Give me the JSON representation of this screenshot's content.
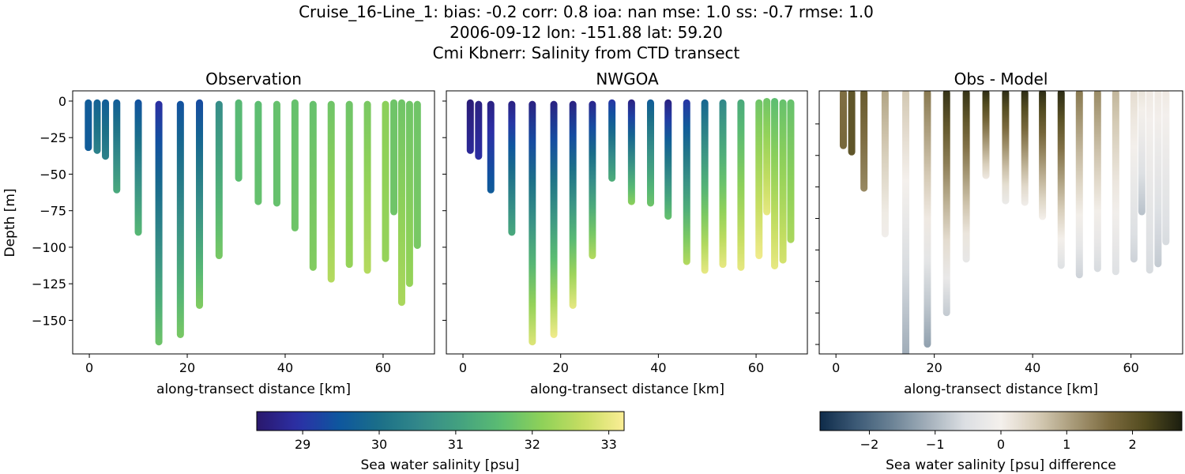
{
  "chart_data": {
    "type": "scatter",
    "title_lines": [
      "Cruise_16-Line_1: bias: -0.2  corr: 0.8  ioa: nan  mse: 1.0  ss: -0.7  rmse: 1.0",
      "2006-09-12 lon: -151.88 lat: 59.20",
      "Cmi Kbnerr: Salinity from CTD transect"
    ],
    "panels": [
      {
        "title": "Observation",
        "xlabel": "along-transect distance [km]",
        "ylabel": "Depth [m]",
        "xlim": [
          -3.4,
          70.5
        ],
        "ylim": [
          -173,
          7
        ],
        "xticks": [
          0,
          20,
          40,
          60
        ],
        "yticks": [
          0,
          -25,
          -50,
          -75,
          -100,
          -125,
          -150
        ],
        "ytick_labels": true,
        "colormap": "haline",
        "vmin": 28.4,
        "vmax": 33.2,
        "profiles": [
          {
            "x": -0.2,
            "top": -1,
            "bottom": -32,
            "s_top": 29.6,
            "s_bottom": 29.6
          },
          {
            "x": 1.6,
            "top": -1,
            "bottom": -34,
            "s_top": 29.7,
            "s_bottom": 30.4
          },
          {
            "x": 3.3,
            "top": -1,
            "bottom": -38,
            "s_top": 29.6,
            "s_bottom": 30.4
          },
          {
            "x": 5.6,
            "top": -1,
            "bottom": -61,
            "s_top": 29.6,
            "s_bottom": 31.2
          },
          {
            "x": 10.0,
            "top": -1,
            "bottom": -90,
            "s_top": 29.4,
            "s_bottom": 31.5
          },
          {
            "x": 14.2,
            "top": -2,
            "bottom": -165,
            "s_top": 28.9,
            "s_bottom": 31.8
          },
          {
            "x": 18.6,
            "top": -2,
            "bottom": -160,
            "s_top": 29.4,
            "s_bottom": 31.9
          },
          {
            "x": 22.5,
            "top": -1,
            "bottom": -140,
            "s_top": 29.3,
            "s_bottom": 32.0
          },
          {
            "x": 26.5,
            "top": -2,
            "bottom": -106,
            "s_top": 30.6,
            "s_bottom": 31.9
          },
          {
            "x": 30.5,
            "top": -1,
            "bottom": -53,
            "s_top": 31.5,
            "s_bottom": 31.6
          },
          {
            "x": 34.5,
            "top": -2,
            "bottom": -69,
            "s_top": 31.6,
            "s_bottom": 31.7
          },
          {
            "x": 38.3,
            "top": -2,
            "bottom": -70,
            "s_top": 31.7,
            "s_bottom": 31.7
          },
          {
            "x": 42.0,
            "top": -1,
            "bottom": -87,
            "s_top": 31.7,
            "s_bottom": 31.8
          },
          {
            "x": 45.7,
            "top": -2,
            "bottom": -114,
            "s_top": 31.7,
            "s_bottom": 32.0
          },
          {
            "x": 49.4,
            "top": -2,
            "bottom": -122,
            "s_top": 31.8,
            "s_bottom": 32.5
          },
          {
            "x": 53.1,
            "top": -2,
            "bottom": -112,
            "s_top": 31.8,
            "s_bottom": 32.2
          },
          {
            "x": 56.8,
            "top": -2,
            "bottom": -116,
            "s_top": 31.9,
            "s_bottom": 32.5
          },
          {
            "x": 60.5,
            "top": -2,
            "bottom": -108,
            "s_top": 32.1,
            "s_bottom": 32.2
          },
          {
            "x": 62.2,
            "top": -1,
            "bottom": -76,
            "s_top": 31.8,
            "s_bottom": 31.8
          },
          {
            "x": 63.8,
            "top": -1,
            "bottom": -138,
            "s_top": 31.8,
            "s_bottom": 32.4
          },
          {
            "x": 65.4,
            "top": -2,
            "bottom": -125,
            "s_top": 31.8,
            "s_bottom": 32.2
          },
          {
            "x": 67.0,
            "top": -2,
            "bottom": -99,
            "s_top": 31.8,
            "s_bottom": 31.9
          }
        ]
      },
      {
        "title": "NWGOA",
        "xlabel": "along-transect distance [km]",
        "xlim": [
          -3.4,
          70.5
        ],
        "ylim": [
          -173,
          7
        ],
        "xticks": [
          0,
          20,
          40,
          60
        ],
        "yticks": [
          0,
          -25,
          -50,
          -75,
          -100,
          -125,
          -150
        ],
        "ytick_labels": false,
        "colormap": "haline",
        "vmin": 28.4,
        "vmax": 33.2,
        "profiles": [
          {
            "x": 1.5,
            "top": -1,
            "bottom": -34,
            "s_top": 28.5,
            "s_bottom": 28.8
          },
          {
            "x": 3.2,
            "top": -2,
            "bottom": -38,
            "s_top": 28.6,
            "s_bottom": 28.9
          },
          {
            "x": 5.7,
            "top": -2,
            "bottom": -61,
            "s_top": 28.6,
            "s_bottom": 29.6
          },
          {
            "x": 10.0,
            "top": -2,
            "bottom": -90,
            "s_top": 28.6,
            "s_bottom": 31.2
          },
          {
            "x": 14.2,
            "top": -2,
            "bottom": -165,
            "s_top": 28.6,
            "s_bottom": 32.9
          },
          {
            "x": 18.6,
            "top": -2,
            "bottom": -160,
            "s_top": 28.6,
            "s_bottom": 33.1
          },
          {
            "x": 22.5,
            "top": -2,
            "bottom": -140,
            "s_top": 28.6,
            "s_bottom": 33.0
          },
          {
            "x": 26.5,
            "top": -2,
            "bottom": -106,
            "s_top": 28.7,
            "s_bottom": 32.5
          },
          {
            "x": 30.5,
            "top": -1,
            "bottom": -53,
            "s_top": 29.0,
            "s_bottom": 31.3
          },
          {
            "x": 34.5,
            "top": -1,
            "bottom": -69,
            "s_top": 28.6,
            "s_bottom": 32.1
          },
          {
            "x": 38.4,
            "top": -1,
            "bottom": -70,
            "s_top": 29.6,
            "s_bottom": 31.8
          },
          {
            "x": 42.0,
            "top": -1,
            "bottom": -79,
            "s_top": 28.6,
            "s_bottom": 31.7
          },
          {
            "x": 45.8,
            "top": -1,
            "bottom": -110,
            "s_top": 29.0,
            "s_bottom": 32.5
          },
          {
            "x": 49.5,
            "top": -1,
            "bottom": -116,
            "s_top": 29.8,
            "s_bottom": 33.0
          },
          {
            "x": 53.2,
            "top": -1,
            "bottom": -112,
            "s_top": 30.5,
            "s_bottom": 33.0
          },
          {
            "x": 56.9,
            "top": -1,
            "bottom": -114,
            "s_top": 31.2,
            "s_bottom": 33.0
          },
          {
            "x": 60.6,
            "top": -1,
            "bottom": -106,
            "s_top": 31.8,
            "s_bottom": 33.1
          },
          {
            "x": 62.2,
            "top": 0,
            "bottom": -76,
            "s_top": 31.8,
            "s_bottom": 33.0
          },
          {
            "x": 63.8,
            "top": 0,
            "bottom": -113,
            "s_top": 31.6,
            "s_bottom": 33.0
          },
          {
            "x": 65.5,
            "top": -1,
            "bottom": -109,
            "s_top": 31.7,
            "s_bottom": 32.8
          },
          {
            "x": 67.1,
            "top": -1,
            "bottom": -95,
            "s_top": 31.7,
            "s_bottom": 32.4
          }
        ]
      },
      {
        "title": "Obs - Model",
        "xlabel": "along-transect distance [km]",
        "xlim": [
          -3.4,
          70.5
        ],
        "ylim": [
          -166,
          1
        ],
        "xticks": [
          0,
          20,
          40,
          60
        ],
        "yticks": [
          -20,
          -40,
          -60,
          -80,
          -100,
          -120,
          -140,
          -160
        ],
        "ytick_labels": false,
        "colormap": "diff",
        "vmin": -2.75,
        "vmax": 2.75,
        "profiles": [
          {
            "x": 1.5,
            "top": 0,
            "bottom": -34,
            "s_top": 1.6,
            "s_bottom": 1.7
          },
          {
            "x": 3.2,
            "top": 0,
            "bottom": -38,
            "s_top": 2.0,
            "s_bottom": 2.0
          },
          {
            "x": 5.7,
            "top": 0,
            "bottom": -61,
            "s_top": 1.9,
            "s_bottom": 1.3
          },
          {
            "x": 10.0,
            "top": 0,
            "bottom": -90,
            "s_top": 1.0,
            "s_bottom": -0.1
          },
          {
            "x": 14.2,
            "top": 0,
            "bottom": -170,
            "s_top": 0.6,
            "s_bottom": -1.2
          },
          {
            "x": 18.6,
            "top": 0,
            "bottom": -160,
            "s_top": 1.5,
            "s_bottom": -1.3
          },
          {
            "x": 22.5,
            "top": 0,
            "bottom": -140,
            "s_top": 2.5,
            "s_bottom": -0.8
          },
          {
            "x": 26.5,
            "top": 0,
            "bottom": -106,
            "s_top": 2.5,
            "s_bottom": -0.3
          },
          {
            "x": 30.5,
            "top": 0,
            "bottom": -53,
            "s_top": 2.6,
            "s_bottom": 0.1
          },
          {
            "x": 34.5,
            "top": 0,
            "bottom": -69,
            "s_top": 2.6,
            "s_bottom": -0.2
          },
          {
            "x": 38.4,
            "top": 0,
            "bottom": -70,
            "s_top": 2.6,
            "s_bottom": -0.1
          },
          {
            "x": 42.0,
            "top": 0,
            "bottom": -79,
            "s_top": 2.6,
            "s_bottom": 0.0
          },
          {
            "x": 45.8,
            "top": 0,
            "bottom": -110,
            "s_top": 2.6,
            "s_bottom": -0.5
          },
          {
            "x": 49.5,
            "top": 0,
            "bottom": -116,
            "s_top": 1.5,
            "s_bottom": -0.7
          },
          {
            "x": 53.2,
            "top": 0,
            "bottom": -112,
            "s_top": 1.3,
            "s_bottom": -0.6
          },
          {
            "x": 56.9,
            "top": 0,
            "bottom": -114,
            "s_top": 0.8,
            "s_bottom": -0.5
          },
          {
            "x": 60.6,
            "top": 0,
            "bottom": -106,
            "s_top": 0.3,
            "s_bottom": -0.7
          },
          {
            "x": 62.2,
            "top": 0,
            "bottom": -76,
            "s_top": 0.2,
            "s_bottom": -0.9
          },
          {
            "x": 63.8,
            "top": 0,
            "bottom": -113,
            "s_top": 0.1,
            "s_bottom": -0.6
          },
          {
            "x": 65.5,
            "top": 0,
            "bottom": -109,
            "s_top": 0.1,
            "s_bottom": -0.8
          },
          {
            "x": 67.1,
            "top": 0,
            "bottom": -95,
            "s_top": 0.1,
            "s_bottom": -0.6
          }
        ]
      }
    ],
    "colorbars": [
      {
        "label": "Sea water salinity [psu]",
        "range": [
          28.4,
          33.2
        ],
        "ticks": [
          29,
          30,
          31,
          32,
          33
        ],
        "tick_labels": [
          "29",
          "30",
          "31",
          "32",
          "33"
        ],
        "colormap": "haline"
      },
      {
        "label": "Sea water salinity [psu] difference",
        "range": [
          -2.75,
          2.75
        ],
        "ticks": [
          -2,
          -1,
          0,
          1,
          2
        ],
        "tick_labels": [
          "−2",
          "−1",
          "0",
          "1",
          "2"
        ],
        "colormap": "diff"
      }
    ],
    "colormaps": {
      "haline": [
        "#2a186c",
        "#2c2fa6",
        "#0e569f",
        "#1b6f88",
        "#33898a",
        "#44a27f",
        "#5cbd72",
        "#8fd158",
        "#c7de62",
        "#fbee95"
      ],
      "diff": [
        "#0f2b4a",
        "#3c5a76",
        "#6c8396",
        "#a4b0bb",
        "#dcdfe3",
        "#f4f0ec",
        "#d6ccb7",
        "#a89a78",
        "#7b6a3e",
        "#514a1e",
        "#1b1e0f"
      ]
    }
  }
}
